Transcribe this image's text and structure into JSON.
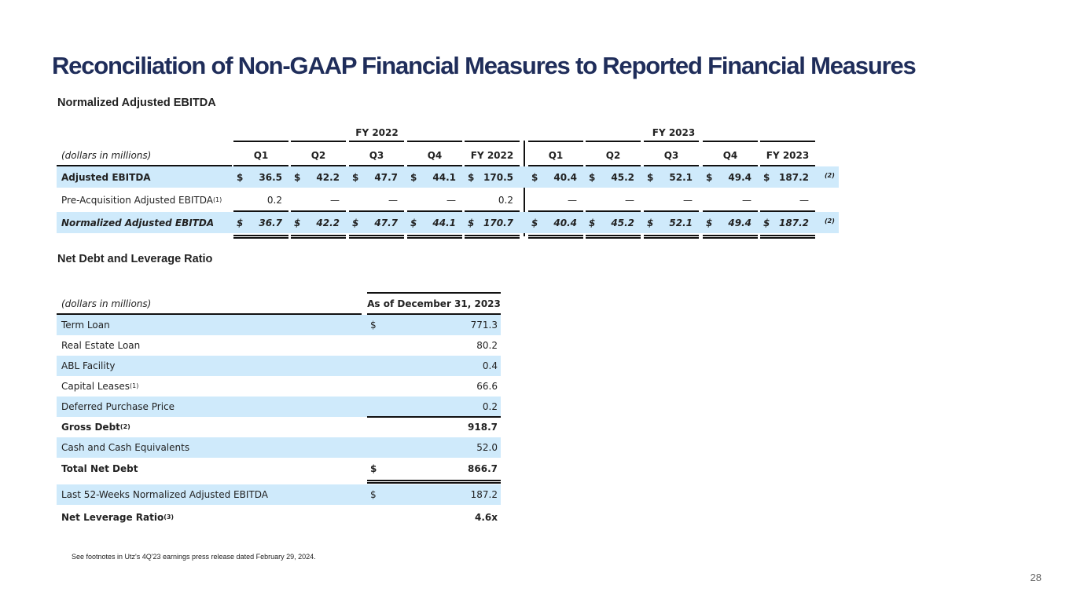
{
  "title": "Reconciliation of Non-GAAP Financial Measures to Reported Financial Measures",
  "ebitda": {
    "heading": "Normalized Adjusted EBITDA",
    "group_headers": [
      "FY 2022",
      "FY 2023"
    ],
    "units_label": "(dollars in millions)",
    "columns": [
      "Q1",
      "Q2",
      "Q3",
      "Q4",
      "FY 2022",
      "Q1",
      "Q2",
      "Q3",
      "Q4",
      "FY 2023"
    ],
    "rows": [
      {
        "label": "Adjusted EBITDA",
        "sup": "",
        "values": [
          "36.5",
          "42.2",
          "47.7",
          "44.1",
          "170.5",
          "40.4",
          "45.2",
          "52.1",
          "49.4",
          "187.2"
        ],
        "dollar": "$",
        "note": "(2)"
      },
      {
        "label": "Pre-Acquisition Adjusted EBITDA",
        "sup": "(1)",
        "values": [
          "0.2",
          "—",
          "—",
          "—",
          "0.2",
          "—",
          "—",
          "—",
          "—",
          "—"
        ],
        "dollar": "",
        "note": ""
      },
      {
        "label": "Normalized Adjusted EBITDA",
        "sup": "",
        "values": [
          "36.7",
          "42.2",
          "47.7",
          "44.1",
          "170.7",
          "40.4",
          "45.2",
          "52.1",
          "49.4",
          "187.2"
        ],
        "dollar": "$",
        "note": "(2)"
      }
    ]
  },
  "debt": {
    "heading": "Net Debt and Leverage Ratio",
    "units_label": "(dollars in millions)",
    "column": "As of December 31, 2023",
    "rows": [
      {
        "label": "Term Loan",
        "sup": "",
        "dollar": "$",
        "value": "771.3"
      },
      {
        "label": "Real Estate Loan",
        "sup": "",
        "dollar": "",
        "value": "80.2"
      },
      {
        "label": "ABL Facility",
        "sup": "",
        "dollar": "",
        "value": "0.4"
      },
      {
        "label": "Capital Leases",
        "sup": "(1)",
        "dollar": "",
        "value": "66.6"
      },
      {
        "label": "Deferred Purchase Price",
        "sup": "",
        "dollar": "",
        "value": "0.2"
      },
      {
        "label": "Gross Debt",
        "sup": "(2)",
        "dollar": "",
        "value": "918.7"
      },
      {
        "label": "Cash and Cash Equivalents",
        "sup": "",
        "dollar": "",
        "value": "52.0"
      },
      {
        "label": "Total Net Debt",
        "sup": "",
        "dollar": "$",
        "value": "866.7"
      },
      {
        "label": "Last 52-Weeks Normalized Adjusted EBITDA",
        "sup": "",
        "dollar": "$",
        "value": "187.2"
      },
      {
        "label": "Net Leverage Ratio",
        "sup": "(3)",
        "dollar": "",
        "value": "4.6x"
      }
    ]
  },
  "footnote": "See footnotes in Utz's 4Q'23 earnings press release dated February 29, 2024.",
  "page_number": "28",
  "colors": {
    "title": "#1f2d5a",
    "row_highlight": "#cfeafb"
  }
}
